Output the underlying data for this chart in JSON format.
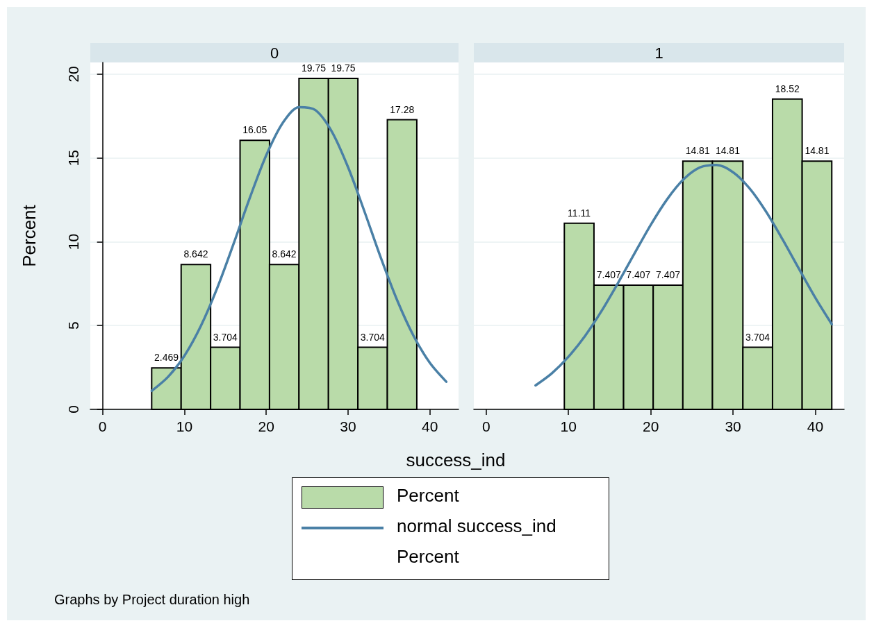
{
  "chart_data": [
    {
      "type": "histogram",
      "title": "0",
      "xlabel": "success_ind",
      "ylabel": "Percent",
      "legend": "bottom",
      "annotations": [
        "Percent",
        "Graphs by Project duration high"
      ],
      "grid": "y",
      "xlim": [
        -1.5,
        43.5
      ],
      "xticks": [
        0,
        10,
        20,
        30,
        40
      ],
      "ylim": [
        0,
        20.7
      ],
      "yticks": [
        0,
        5,
        10,
        15,
        20
      ],
      "series": [
        {
          "name": "Percent",
          "color": "#b9dba9",
          "bins": [
            6,
            9.6,
            13.2,
            16.8,
            20.4,
            24,
            27.6,
            31.2,
            34.8,
            38.4
          ],
          "values": [
            2.469,
            8.642,
            3.704,
            16.05,
            8.642,
            19.75,
            19.75,
            3.704,
            17.28
          ],
          "value_labels": [
            "2.469",
            "8.642",
            "3.704",
            "16.05",
            "8.642",
            "19.75",
            "19.75",
            "3.704",
            "17.28"
          ]
        },
        {
          "type": "line",
          "name": "normal success_ind",
          "color": "#4a80a6",
          "x": [
            6,
            8,
            10,
            12,
            14,
            16,
            18,
            20,
            22,
            24,
            26,
            28,
            30,
            32,
            34,
            36,
            38,
            40,
            42
          ],
          "values": [
            1.1,
            1.94,
            3.2,
            4.97,
            7.23,
            9.87,
            12.63,
            15.16,
            17.08,
            18.03,
            17.86,
            16.59,
            14.45,
            11.81,
            9.05,
            6.51,
            4.39,
            2.77,
            1.65
          ]
        }
      ]
    },
    {
      "type": "histogram",
      "title": "1",
      "tick_labels": "x",
      "grid": "y",
      "xlim": [
        -1.5,
        43.5
      ],
      "xticks": [
        0,
        10,
        20,
        30,
        40
      ],
      "ylim": [
        0,
        20.7
      ],
      "yticks": [
        0,
        5,
        10,
        15,
        20
      ],
      "series": [
        {
          "color": "#b9dba9",
          "bins": [
            9.5,
            13.1,
            16.7,
            20.3,
            23.9,
            27.5,
            31.2,
            34.8,
            38.4,
            42
          ],
          "values": [
            11.11,
            7.407,
            7.407,
            7.407,
            14.81,
            14.81,
            3.704,
            18.52,
            14.81
          ],
          "value_labels": [
            "11.11",
            "7.407",
            "7.407",
            "7.407",
            "14.81",
            "14.81",
            "3.704",
            "18.52",
            "14.81"
          ]
        },
        {
          "type": "line",
          "color": "#4a80a6",
          "x": [
            6,
            8,
            10,
            12,
            14,
            16,
            18,
            20,
            22,
            24,
            26,
            28,
            30,
            32,
            34,
            36,
            38,
            40,
            42
          ],
          "values": [
            1.43,
            2.16,
            3.14,
            4.37,
            5.85,
            7.52,
            9.28,
            11.01,
            12.54,
            13.73,
            14.44,
            14.58,
            14.15,
            13.19,
            11.81,
            10.16,
            8.4,
            6.66,
            5.08
          ]
        }
      ]
    }
  ]
}
